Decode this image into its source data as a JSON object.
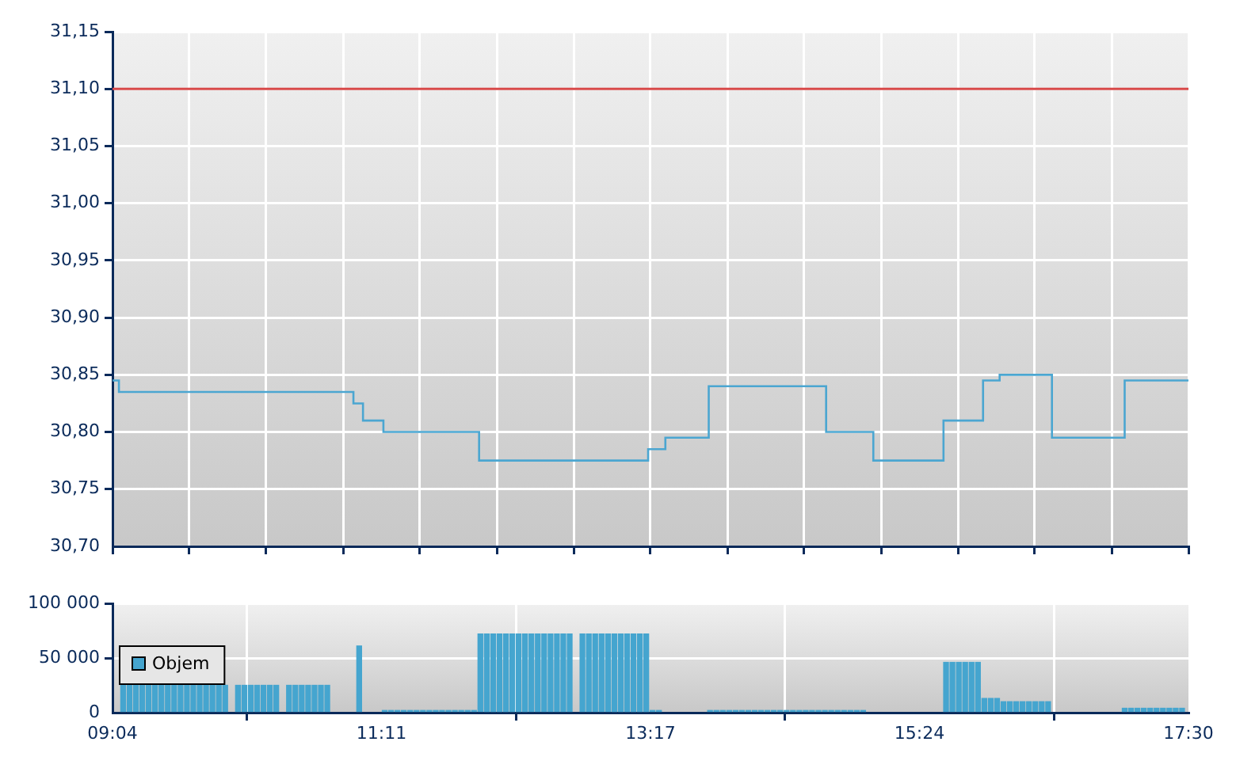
{
  "chart_data": [
    {
      "type": "step",
      "xlim": [
        9.0667,
        17.5
      ],
      "ylim": [
        30.7,
        31.15
      ],
      "tick_labels": "y",
      "grid": true,
      "xticks": [
        {
          "value": 9.0667,
          "label": null
        },
        {
          "value": 9.669,
          "label": null
        },
        {
          "value": 10.271,
          "label": null
        },
        {
          "value": 10.874,
          "label": null
        },
        {
          "value": 11.476,
          "label": null
        },
        {
          "value": 12.079,
          "label": null
        },
        {
          "value": 12.681,
          "label": null
        },
        {
          "value": 13.283,
          "label": null
        },
        {
          "value": 13.886,
          "label": null
        },
        {
          "value": 14.488,
          "label": null
        },
        {
          "value": 15.091,
          "label": null
        },
        {
          "value": 15.693,
          "label": null
        },
        {
          "value": 16.295,
          "label": null
        },
        {
          "value": 16.898,
          "label": null
        },
        {
          "value": 17.5,
          "label": null
        }
      ],
      "yticks": [
        {
          "value": 30.7,
          "label": "30,70"
        },
        {
          "value": 30.75,
          "label": "30,75"
        },
        {
          "value": 30.8,
          "label": "30,80"
        },
        {
          "value": 30.85,
          "label": "30,85"
        },
        {
          "value": 30.9,
          "label": "30,90"
        },
        {
          "value": 30.95,
          "label": "30,95"
        },
        {
          "value": 31.0,
          "label": "31,00"
        },
        {
          "value": 31.05,
          "label": "31,05"
        },
        {
          "value": 31.1,
          "label": "31,10"
        },
        {
          "value": 31.15,
          "label": "31,15"
        }
      ],
      "ref_lines": [
        {
          "axis": "y",
          "value": 31.1,
          "color": "#d84a4a"
        }
      ],
      "series": [
        {
          "color": "#4ba6d1",
          "x": [
            9.067,
            9.117,
            10.955,
            11.03,
            11.19,
            11.94,
            13.265,
            13.4,
            13.74,
            14.66,
            15.03,
            15.58,
            15.89,
            16.02,
            16.43,
            17.0,
            17.5
          ],
          "values": [
            30.845,
            30.835,
            30.825,
            30.81,
            30.8,
            30.775,
            30.785,
            30.795,
            30.84,
            30.8,
            30.775,
            30.81,
            30.845,
            30.85,
            30.795,
            30.845,
            30.845
          ]
        }
      ]
    },
    {
      "type": "bar",
      "xlim": [
        9.0667,
        17.5
      ],
      "ylim": [
        0,
        100000
      ],
      "grid": true,
      "legend": "left",
      "xticks": [
        {
          "value": 9.0667,
          "label": "09:04"
        },
        {
          "value": 11.175,
          "label": "11:11"
        },
        {
          "value": 13.283,
          "label": "13:17"
        },
        {
          "value": 15.392,
          "label": "15:24"
        },
        {
          "value": 17.5,
          "label": "17:30"
        }
      ],
      "yticks": [
        {
          "value": 0,
          "label": "0"
        },
        {
          "value": 50000,
          "label": "50 000"
        },
        {
          "value": 100000,
          "label": "100 000"
        }
      ],
      "series": [
        {
          "name": "Objem",
          "color": "#45a5cf",
          "x": [
            9.15,
            9.2,
            9.25,
            9.3,
            9.35,
            9.4,
            9.45,
            9.5,
            9.55,
            9.6,
            9.65,
            9.7,
            9.75,
            9.8,
            9.85,
            9.9,
            9.95,
            10.05,
            10.1,
            10.15,
            10.2,
            10.25,
            10.3,
            10.35,
            10.45,
            10.5,
            10.55,
            10.6,
            10.65,
            10.7,
            10.75,
            11.0,
            11.2,
            11.25,
            11.3,
            11.35,
            11.4,
            11.45,
            11.5,
            11.55,
            11.6,
            11.65,
            11.7,
            11.75,
            11.8,
            11.85,
            11.9,
            11.95,
            12.0,
            12.05,
            12.1,
            12.15,
            12.2,
            12.25,
            12.3,
            12.35,
            12.4,
            12.45,
            12.5,
            12.55,
            12.6,
            12.65,
            12.75,
            12.8,
            12.85,
            12.9,
            12.95,
            13.0,
            13.05,
            13.1,
            13.15,
            13.2,
            13.25,
            13.3,
            13.35,
            13.75,
            13.8,
            13.85,
            13.9,
            13.95,
            14.0,
            14.05,
            14.1,
            14.15,
            14.2,
            14.25,
            14.3,
            14.35,
            14.4,
            14.45,
            14.5,
            14.55,
            14.6,
            14.65,
            14.7,
            14.75,
            14.8,
            14.85,
            14.9,
            14.95,
            15.6,
            15.65,
            15.7,
            15.75,
            15.8,
            15.85,
            15.9,
            15.95,
            16.0,
            16.05,
            16.1,
            16.15,
            16.2,
            16.25,
            16.3,
            16.35,
            16.4,
            17.0,
            17.05,
            17.1,
            17.15,
            17.2,
            17.25,
            17.3,
            17.35,
            17.4,
            17.45
          ],
          "values": [
            25000,
            25000,
            25000,
            25000,
            25000,
            25000,
            25000,
            25000,
            25000,
            25000,
            25000,
            25000,
            25000,
            25000,
            25000,
            25000,
            25000,
            25000,
            25000,
            25000,
            25000,
            25000,
            25000,
            25000,
            25000,
            25000,
            25000,
            25000,
            25000,
            25000,
            25000,
            61000,
            2000,
            2000,
            2000,
            2000,
            2000,
            2000,
            2000,
            2000,
            2000,
            2000,
            2000,
            2000,
            2000,
            2000,
            2000,
            72000,
            72000,
            72000,
            72000,
            72000,
            72000,
            72000,
            72000,
            72000,
            72000,
            72000,
            72000,
            72000,
            72000,
            72000,
            72000,
            72000,
            72000,
            72000,
            72000,
            72000,
            72000,
            72000,
            72000,
            72000,
            72000,
            2000,
            2000,
            2000,
            2000,
            2000,
            2000,
            2000,
            2000,
            2000,
            2000,
            2000,
            2000,
            2000,
            2000,
            2000,
            2000,
            2000,
            2000,
            2000,
            2000,
            2000,
            2000,
            2000,
            2000,
            2000,
            2000,
            2000,
            46000,
            46000,
            46000,
            46000,
            46000,
            46000,
            13000,
            13000,
            13000,
            10000,
            10000,
            10000,
            10000,
            10000,
            10000,
            10000,
            10000,
            4000,
            4000,
            4000,
            4000,
            4000,
            4000,
            4000,
            4000,
            4000,
            4000
          ]
        }
      ]
    }
  ]
}
